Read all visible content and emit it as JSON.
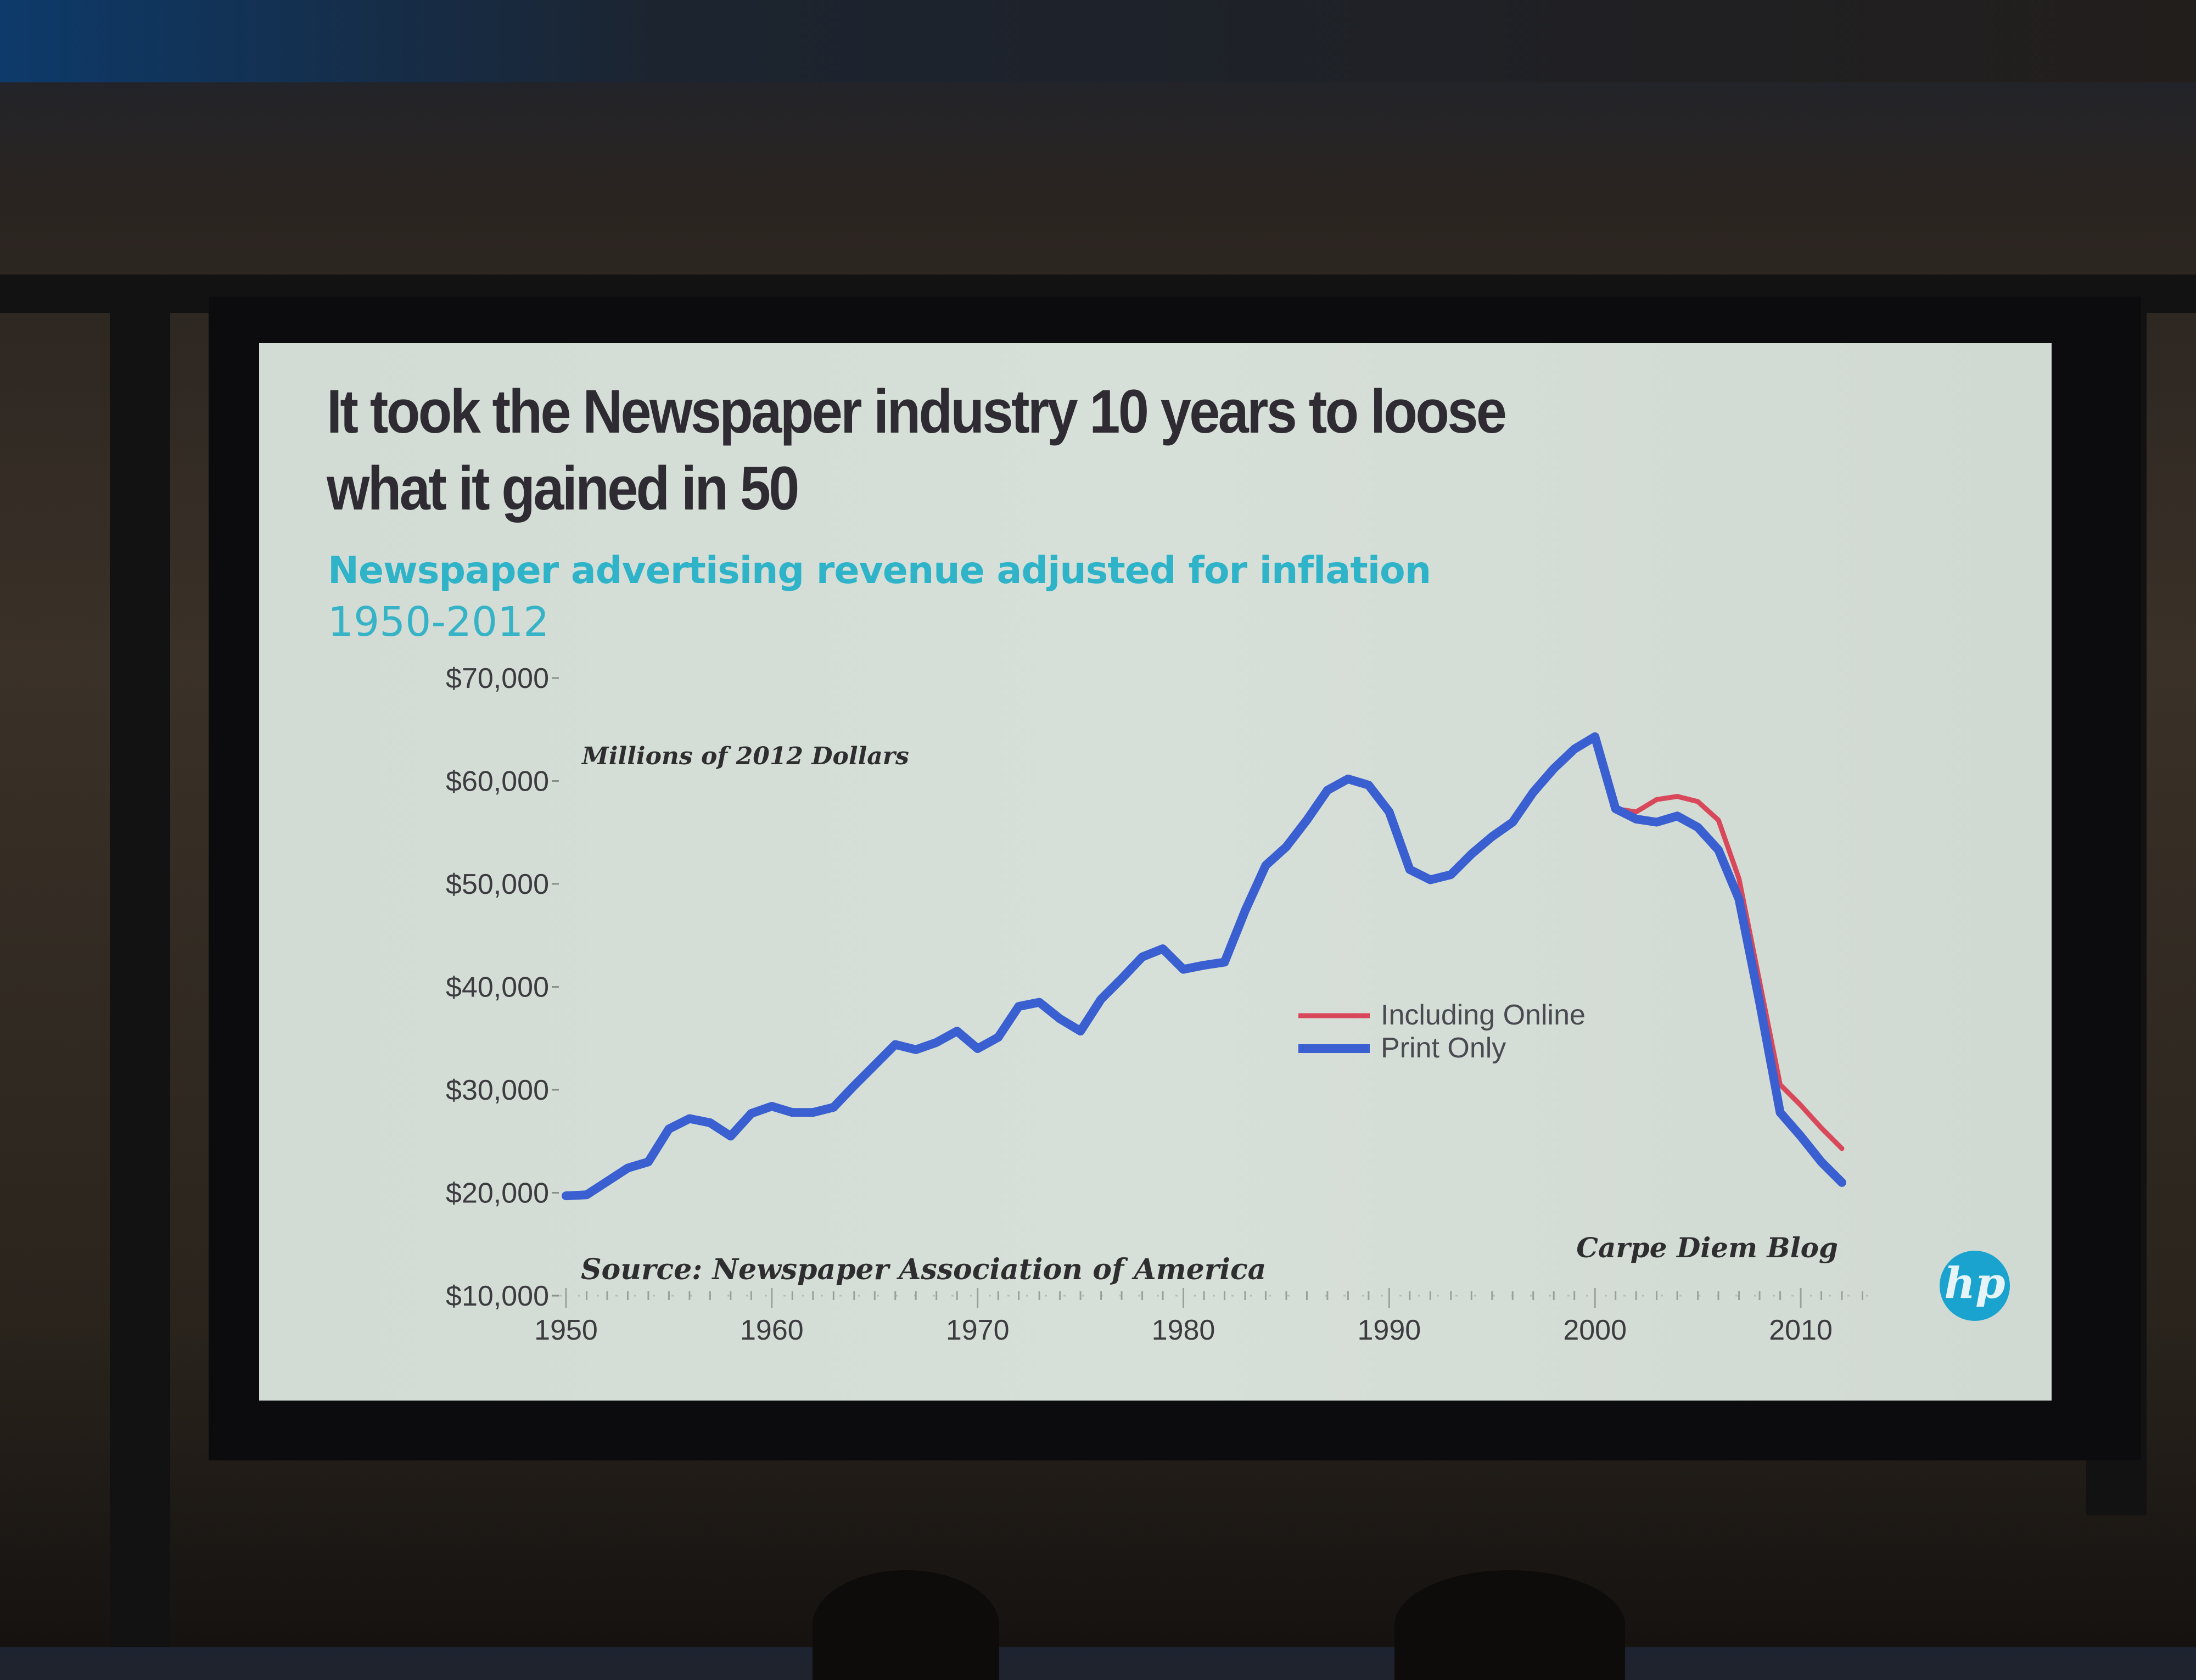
{
  "slide": {
    "title_line1": "It took the Newspaper industry 10 years to loose",
    "title_line2": "what it gained in 50",
    "subtitle": "Newspaper advertising revenue adjusted for inflation",
    "date_range": "1950-2012",
    "logo_text": "hp",
    "colors": {
      "title": "#2f2b33",
      "subtitle": "#2fb3c8",
      "logo": "#1aa3cf"
    }
  },
  "chart_data": {
    "type": "line",
    "title": "",
    "unit_label": "Millions of 2012 Dollars",
    "source": "Source: Newspaper Association of America",
    "credit": "Carpe Diem Blog",
    "xlim": [
      1950,
      2012
    ],
    "ylim": [
      10000,
      70000
    ],
    "x_ticks": [
      "1950",
      "1960",
      "1970",
      "1980",
      "1990",
      "2000",
      "2010"
    ],
    "y_ticks": [
      "$10,000",
      "$20,000",
      "$30,000",
      "$40,000",
      "$50,000",
      "$60,000",
      "$70,000"
    ],
    "grid": false,
    "legend_position": "center-right",
    "series": [
      {
        "name": "Including Online",
        "color": "#d8485a",
        "x": [
          2001,
          2002,
          2003,
          2004,
          2005,
          2006,
          2007,
          2008,
          2009,
          2010,
          2011,
          2012
        ],
        "y": [
          57300,
          57000,
          58200,
          58500,
          58000,
          56200,
          50500,
          40500,
          30500,
          28500,
          26300,
          24300
        ]
      },
      {
        "name": "Print Only",
        "color": "#3a5fd0",
        "x": [
          1950,
          1951,
          1952,
          1953,
          1954,
          1955,
          1956,
          1957,
          1958,
          1959,
          1960,
          1961,
          1962,
          1963,
          1964,
          1965,
          1966,
          1967,
          1968,
          1969,
          1970,
          1971,
          1972,
          1973,
          1974,
          1975,
          1976,
          1977,
          1978,
          1979,
          1980,
          1981,
          1982,
          1983,
          1984,
          1985,
          1986,
          1987,
          1988,
          1989,
          1990,
          1991,
          1992,
          1993,
          1994,
          1995,
          1996,
          1997,
          1998,
          1999,
          2000,
          2001,
          2002,
          2003,
          2004,
          2005,
          2006,
          2007,
          2008,
          2009,
          2010,
          2011,
          2012
        ],
        "y": [
          19700,
          19800,
          21100,
          22400,
          23000,
          26200,
          27200,
          26800,
          25500,
          27700,
          28400,
          27800,
          27800,
          28300,
          30400,
          32400,
          34400,
          33900,
          34600,
          35700,
          34000,
          35100,
          38100,
          38500,
          36900,
          35700,
          38800,
          40800,
          42900,
          43700,
          41700,
          42100,
          42400,
          47400,
          51800,
          53600,
          56200,
          59100,
          60200,
          59600,
          57000,
          51400,
          50400,
          50900,
          52900,
          54600,
          56000,
          58900,
          61200,
          63100,
          64300,
          57300,
          56300,
          56000,
          56600,
          55500,
          53300,
          48500,
          38500,
          27800,
          25500,
          23000,
          21000
        ]
      }
    ]
  }
}
